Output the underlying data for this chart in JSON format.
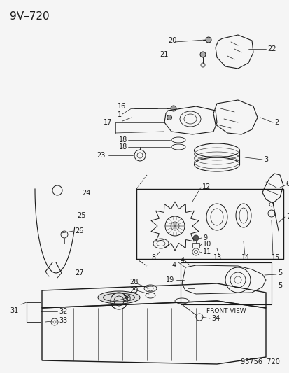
{
  "title": "9V–720",
  "footer": "95756  720",
  "bg_color": "#f5f5f5",
  "line_color": "#1a1a1a",
  "title_fontsize": 11,
  "footer_fontsize": 7,
  "label_fontsize": 7,
  "figsize": [
    4.14,
    5.33
  ],
  "dpi": 100,
  "front_view_text": "FRONT VIEW"
}
